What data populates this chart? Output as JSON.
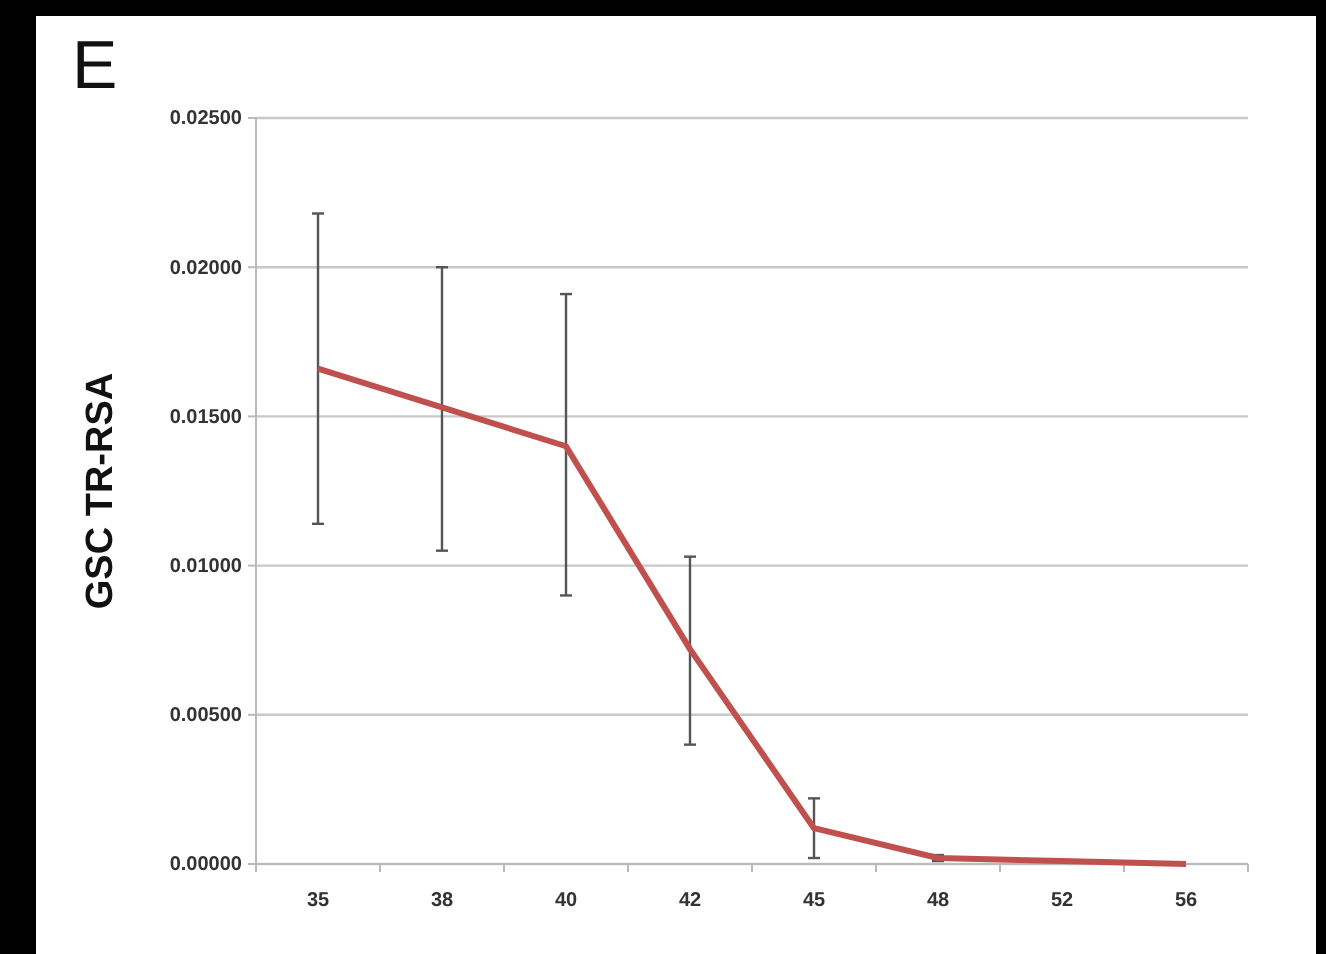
{
  "chart_data": {
    "type": "line",
    "title": "E",
    "ylabel": "GSC TR-RSA",
    "categories": [
      "35",
      "38",
      "40",
      "42",
      "45",
      "48",
      "52",
      "56"
    ],
    "series": [
      {
        "color": "#c0504d",
        "values": [
          0.0166,
          0.0153,
          0.014,
          0.0072,
          0.0012,
          0.0002,
          0.0001,
          0.0
        ],
        "errors": [
          [
            0.0114,
            0.0218
          ],
          [
            0.0105,
            0.02
          ],
          [
            0.009,
            0.0191
          ],
          [
            0.004,
            0.0103
          ],
          [
            0.0002,
            0.0022
          ],
          [
            0.0001,
            0.0003
          ],
          null,
          null
        ]
      }
    ],
    "ylim": [
      0,
      0.025
    ],
    "yticks": [
      {
        "value": 0,
        "label": "0.00000"
      },
      {
        "value": 0.005,
        "label": "0.00500"
      },
      {
        "value": 0.01,
        "label": "0.01000"
      },
      {
        "value": 0.015,
        "label": "0.01500"
      },
      {
        "value": 0.02,
        "label": "0.02000"
      },
      {
        "value": 0.025,
        "label": "0.02500"
      }
    ],
    "grid": "y",
    "marker": "none",
    "line_style": "solid"
  }
}
